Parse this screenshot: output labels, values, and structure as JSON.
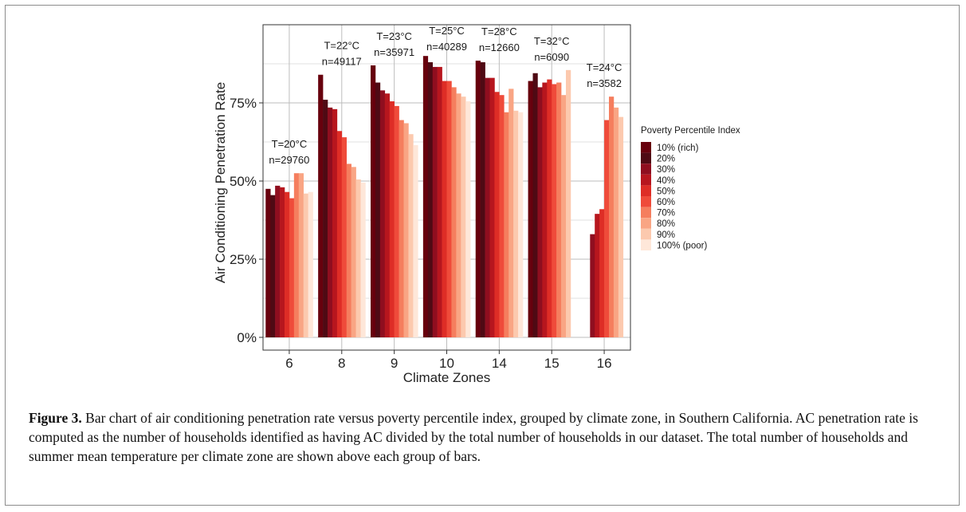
{
  "caption": {
    "label": "Figure 3.",
    "text": "Bar chart of air conditioning penetration rate versus poverty percentile index, grouped by climate zone, in Southern California. AC penetration rate is computed as the number of households identified as having AC divided by the total number of households in our dataset. The total number of households and summer mean temperature per climate zone are shown above each group of bars."
  },
  "chart_data": {
    "type": "bar",
    "title": "",
    "xlabel": "Climate Zones",
    "ylabel": "Air Conditioning Penetration Rate",
    "ylim": [
      0,
      1.0
    ],
    "yticks": [
      0,
      0.25,
      0.5,
      0.75
    ],
    "ytick_labels": [
      "0%",
      "25%",
      "50%",
      "75%"
    ],
    "grid": true,
    "legend_title": "Poverty Percentile Index",
    "legend_position": "right",
    "categories": [
      "6",
      "8",
      "9",
      "10",
      "14",
      "15",
      "16"
    ],
    "annotations": [
      {
        "category": "6",
        "line1": "T=20°C",
        "line2": "n=29760"
      },
      {
        "category": "8",
        "line1": "T=22°C",
        "line2": "n=49117"
      },
      {
        "category": "9",
        "line1": "T=23°C",
        "line2": "n=35971"
      },
      {
        "category": "10",
        "line1": "T=25°C",
        "line2": "n=40289"
      },
      {
        "category": "14",
        "line1": "T=28°C",
        "line2": "n=12660"
      },
      {
        "category": "15",
        "line1": "T=32°C",
        "line2": "n=6090"
      },
      {
        "category": "16",
        "line1": "T=24°C",
        "line2": "n=3582"
      }
    ],
    "series": [
      {
        "name": "10% (rich)",
        "color": "#67000d",
        "values": [
          0.475,
          0.84,
          0.87,
          0.9,
          0.885,
          0.82,
          null
        ]
      },
      {
        "name": "20%",
        "color": "#4f0a14",
        "values": [
          0.455,
          0.76,
          0.815,
          0.88,
          0.88,
          0.845,
          null
        ]
      },
      {
        "name": "30%",
        "color": "#8f0e1f",
        "values": [
          0.485,
          0.735,
          0.79,
          0.865,
          0.83,
          0.8,
          0.33
        ]
      },
      {
        "name": "40%",
        "color": "#b7161e",
        "values": [
          0.48,
          0.73,
          0.78,
          0.865,
          0.83,
          0.815,
          0.395
        ]
      },
      {
        "name": "50%",
        "color": "#de2d26",
        "values": [
          0.465,
          0.66,
          0.755,
          0.82,
          0.785,
          0.825,
          0.41
        ]
      },
      {
        "name": "60%",
        "color": "#ef4b3a",
        "values": [
          0.445,
          0.64,
          0.74,
          0.82,
          0.775,
          0.81,
          0.695
        ]
      },
      {
        "name": "70%",
        "color": "#f57e5e",
        "values": [
          0.525,
          0.555,
          0.695,
          0.8,
          0.72,
          0.815,
          0.77
        ]
      },
      {
        "name": "80%",
        "color": "#f9a584",
        "values": [
          0.525,
          0.545,
          0.685,
          0.78,
          0.795,
          0.775,
          0.735
        ]
      },
      {
        "name": "90%",
        "color": "#fcc9ae",
        "values": [
          0.46,
          0.505,
          0.65,
          0.77,
          0.725,
          0.855,
          0.705
        ]
      },
      {
        "name": "100% (poor)",
        "color": "#fee7d9",
        "values": [
          0.465,
          0.495,
          0.615,
          0.755,
          0.72,
          null,
          null
        ]
      }
    ]
  }
}
